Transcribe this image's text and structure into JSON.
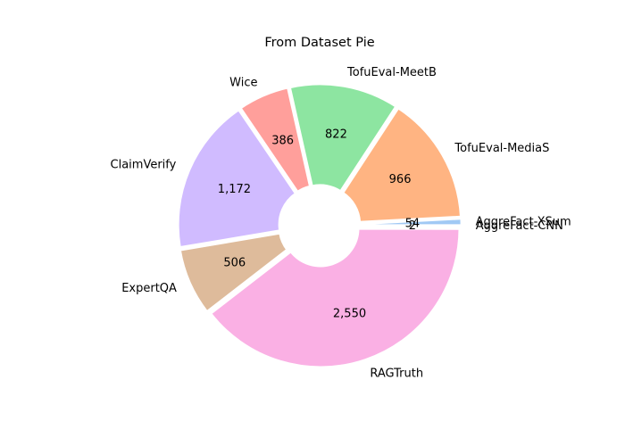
{
  "chart_data": {
    "type": "pie",
    "title": "From Dataset Pie",
    "donut": true,
    "start_angle_deg": 0,
    "direction": "counterclockwise",
    "slices": [
      {
        "label": "AggreFact-XSum",
        "value": 54,
        "value_label": "54",
        "color": "#a1c9f4",
        "explode": 0.02
      },
      {
        "label": "TofuEval-MediaS",
        "value": 966,
        "value_label": "966",
        "color": "#ffb482",
        "explode": 0.02
      },
      {
        "label": "TofuEval-MeetB",
        "value": 822,
        "value_label": "822",
        "color": "#8de5a1",
        "explode": 0.02
      },
      {
        "label": "Wice",
        "value": 386,
        "value_label": "386",
        "color": "#ff9f9b",
        "explode": 0.02
      },
      {
        "label": "ClaimVerify",
        "value": 1172,
        "value_label": "1,172",
        "color": "#d0bbff",
        "explode": 0.02
      },
      {
        "label": "ExpertQA",
        "value": 506,
        "value_label": "506",
        "color": "#debb9b",
        "explode": 0.02
      },
      {
        "label": "RAGTruth",
        "value": 2550,
        "value_label": "2,550",
        "color": "#fab0e4",
        "explode": 0.02
      },
      {
        "label": "AggreFact-CNN",
        "value": 2,
        "value_label": "2",
        "color": "#cfcfcf",
        "explode": 0.02
      }
    ]
  }
}
